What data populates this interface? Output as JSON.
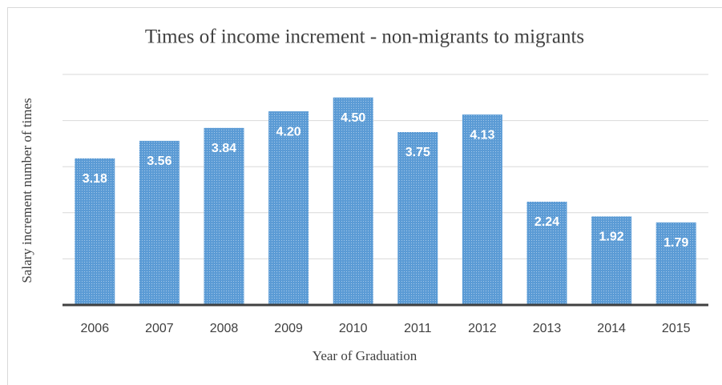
{
  "chart_data": {
    "type": "bar",
    "title": "Times of income increment - non-migrants to migrants",
    "x_label": "Year of Graduation",
    "y_label": "Salary increment number of times",
    "categories": [
      "2006",
      "2007",
      "2008",
      "2009",
      "2010",
      "2011",
      "2012",
      "2013",
      "2014",
      "2015"
    ],
    "values": [
      3.18,
      3.56,
      3.84,
      4.2,
      4.5,
      3.75,
      4.13,
      2.24,
      1.92,
      1.79
    ],
    "value_labels": [
      "3.18",
      "3.56",
      "3.84",
      "4.20",
      "4.50",
      "3.75",
      "4.13",
      "2.24",
      "1.92",
      "1.79"
    ],
    "color": "#5b9bd5",
    "ylim": [
      0,
      5
    ],
    "yticks": [
      0,
      1,
      2,
      3,
      4,
      5
    ],
    "grid": true
  }
}
